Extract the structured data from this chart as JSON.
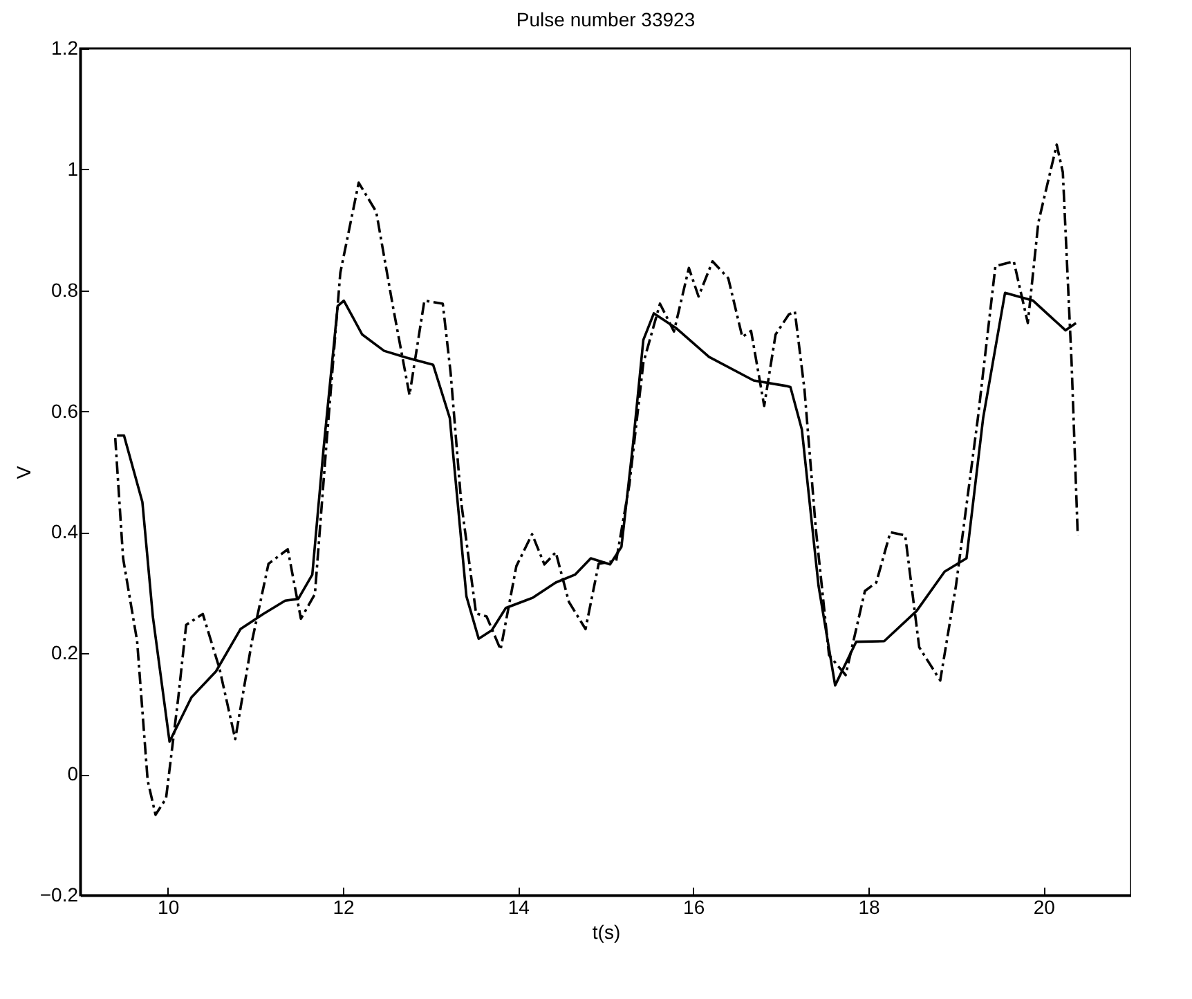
{
  "chart_data": {
    "type": "line",
    "title": "Pulse number 33923",
    "xlabel": "t(s)",
    "ylabel": "V",
    "xlim": [
      9,
      21
    ],
    "ylim": [
      -0.2,
      1.2
    ],
    "xticks": [
      10,
      12,
      14,
      16,
      18,
      20
    ],
    "yticks": [
      -0.2,
      0,
      0.2,
      0.4,
      0.6,
      0.8,
      1,
      1.2
    ],
    "grid": false,
    "series": [
      {
        "color": "#000000",
        "line_style": "solid",
        "x": [
          9.42,
          9.5,
          9.71,
          9.83,
          10.02,
          10.27,
          10.55,
          10.83,
          11.09,
          11.34,
          11.49,
          11.65,
          11.78,
          11.94,
          12.01,
          12.22,
          12.47,
          12.72,
          13.03,
          13.22,
          13.41,
          13.55,
          13.7,
          13.86,
          14.17,
          14.43,
          14.65,
          14.83,
          15.05,
          15.18,
          15.31,
          15.43,
          15.55,
          15.81,
          16.18,
          16.69,
          17.06,
          17.11,
          17.24,
          17.43,
          17.62,
          17.86,
          18.18,
          18.55,
          18.87,
          19.12,
          19.31,
          19.56,
          19.88,
          20.25,
          20.37
        ],
        "values": [
          0.56,
          0.56,
          0.45,
          0.26,
          0.054,
          0.127,
          0.17,
          0.24,
          0.265,
          0.287,
          0.29,
          0.33,
          0.54,
          0.774,
          0.783,
          0.727,
          0.7,
          0.689,
          0.677,
          0.589,
          0.294,
          0.224,
          0.238,
          0.275,
          0.292,
          0.317,
          0.33,
          0.357,
          0.347,
          0.376,
          0.543,
          0.718,
          0.762,
          0.737,
          0.69,
          0.651,
          0.642,
          0.64,
          0.57,
          0.312,
          0.147,
          0.219,
          0.22,
          0.27,
          0.335,
          0.357,
          0.589,
          0.796,
          0.783,
          0.734,
          0.746
        ]
      },
      {
        "color": "#000000",
        "line_style": "dashdot",
        "x": [
          9.4,
          9.49,
          9.65,
          9.77,
          9.86,
          9.98,
          10.12,
          10.21,
          10.4,
          10.59,
          10.77,
          10.96,
          11.15,
          11.37,
          11.52,
          11.68,
          11.81,
          11.97,
          12.18,
          12.38,
          12.57,
          12.76,
          12.93,
          13.14,
          13.23,
          13.35,
          13.52,
          13.64,
          13.8,
          13.98,
          14.16,
          14.3,
          14.43,
          14.58,
          14.77,
          14.92,
          15.12,
          15.27,
          15.43,
          15.62,
          15.78,
          15.95,
          16.06,
          16.22,
          16.4,
          16.56,
          16.66,
          16.81,
          16.94,
          17.09,
          17.16,
          17.27,
          17.4,
          17.55,
          17.74,
          17.96,
          18.09,
          18.25,
          18.42,
          18.58,
          18.82,
          19.0,
          19.25,
          19.45,
          19.66,
          19.82,
          19.94,
          20.15,
          20.22,
          20.32,
          20.39
        ],
        "values": [
          0.556,
          0.357,
          0.22,
          -0.01,
          -0.067,
          -0.04,
          0.127,
          0.247,
          0.265,
          0.175,
          0.058,
          0.219,
          0.348,
          0.372,
          0.257,
          0.298,
          0.543,
          0.829,
          0.978,
          0.93,
          0.774,
          0.627,
          0.783,
          0.778,
          0.663,
          0.45,
          0.266,
          0.261,
          0.206,
          0.344,
          0.397,
          0.347,
          0.367,
          0.285,
          0.24,
          0.348,
          0.353,
          0.478,
          0.68,
          0.778,
          0.732,
          0.837,
          0.79,
          0.848,
          0.82,
          0.723,
          0.733,
          0.609,
          0.727,
          0.76,
          0.765,
          0.636,
          0.405,
          0.197,
          0.164,
          0.303,
          0.317,
          0.4,
          0.395,
          0.21,
          0.155,
          0.312,
          0.589,
          0.84,
          0.848,
          0.746,
          0.912,
          1.041,
          0.995,
          0.68,
          0.395
        ]
      }
    ]
  }
}
